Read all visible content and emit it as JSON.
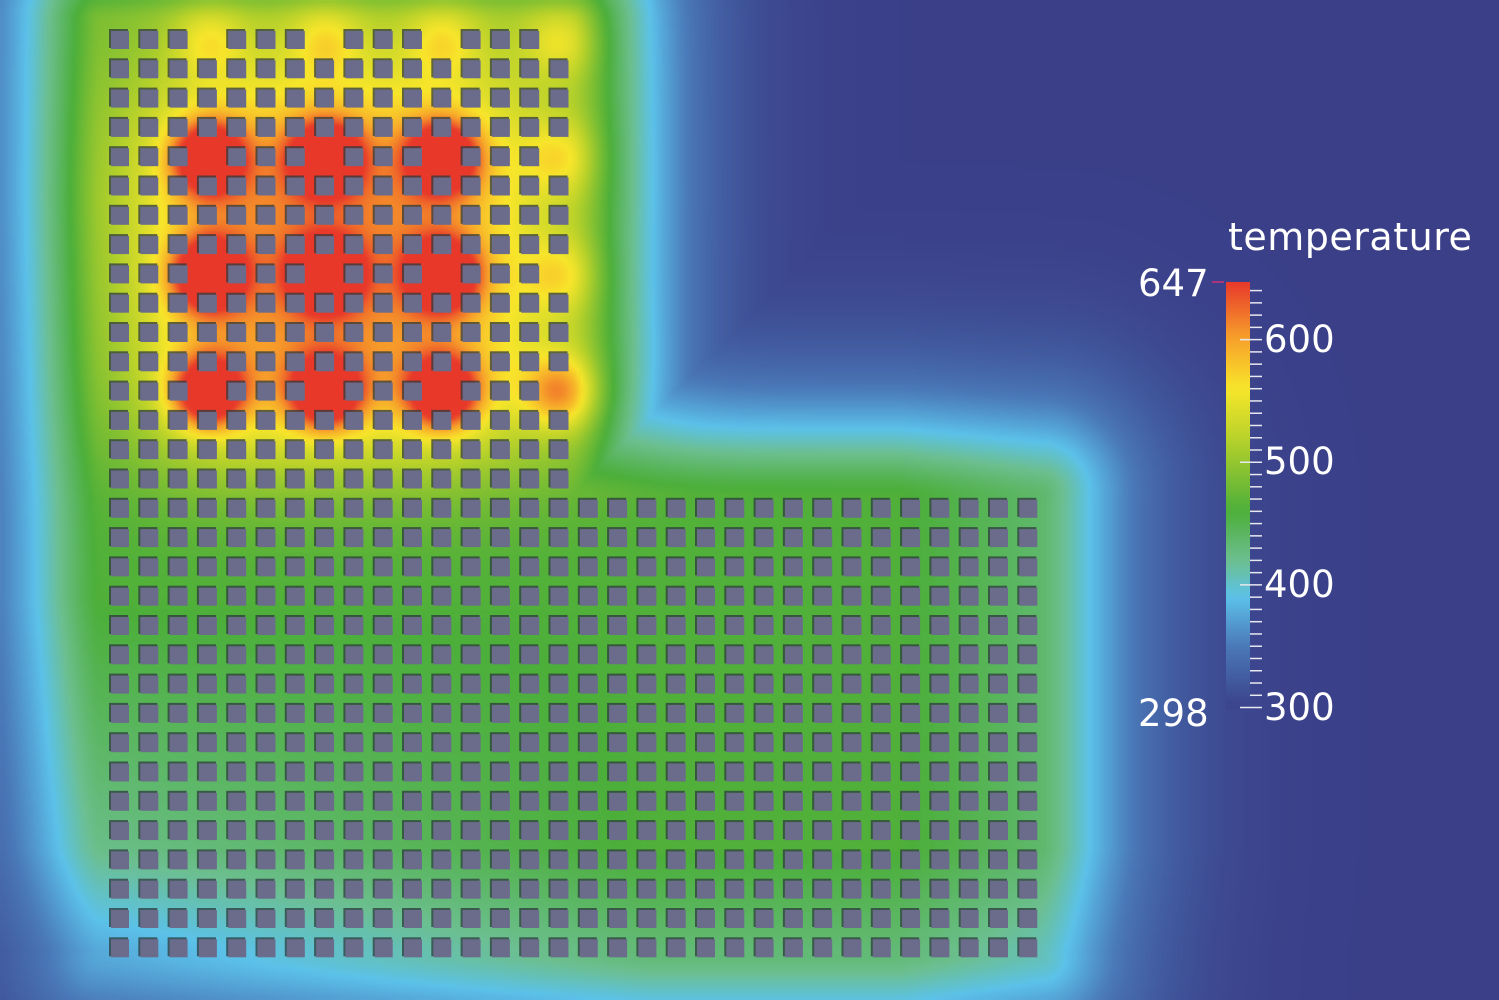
{
  "chart_data": {
    "type": "heatmap",
    "title": "temperature",
    "colorbar": {
      "label": "temperature",
      "min_label": "298",
      "max_label": "647",
      "min": 298,
      "max": 647,
      "ticks": [
        "300",
        "400",
        "500",
        "600"
      ],
      "tick_values": [
        300,
        400,
        500,
        600
      ],
      "colors": [
        "#3a3f88",
        "#4a78b8",
        "#5cc2ea",
        "#6cbf8f",
        "#4caf3a",
        "#b9d22a",
        "#f8e62a",
        "#f7a22a",
        "#e8382a"
      ]
    },
    "grid": {
      "upper_block": {
        "rows": 16,
        "cols": 16
      },
      "lower_block": {
        "rows": 16,
        "cols": 32
      }
    },
    "heat_sources": [
      {
        "row": 4,
        "col": 3,
        "level": "high"
      },
      {
        "row": 4,
        "col": 7,
        "level": "high"
      },
      {
        "row": 4,
        "col": 11,
        "level": "high"
      },
      {
        "row": 8,
        "col": 3,
        "level": "high"
      },
      {
        "row": 8,
        "col": 7,
        "level": "high"
      },
      {
        "row": 8,
        "col": 11,
        "level": "high"
      },
      {
        "row": 12,
        "col": 3,
        "level": "high"
      },
      {
        "row": 12,
        "col": 7,
        "level": "high"
      },
      {
        "row": 12,
        "col": 11,
        "level": "high"
      },
      {
        "row": 0,
        "col": 3,
        "level": "low"
      },
      {
        "row": 0,
        "col": 7,
        "level": "low"
      },
      {
        "row": 0,
        "col": 11,
        "level": "low"
      },
      {
        "row": 0,
        "col": 15,
        "level": "low"
      },
      {
        "row": 4,
        "col": 15,
        "level": "low"
      },
      {
        "row": 8,
        "col": 15,
        "level": "low"
      },
      {
        "row": 12,
        "col": 15,
        "level": "medium"
      }
    ],
    "background_color": "#3a4088"
  }
}
